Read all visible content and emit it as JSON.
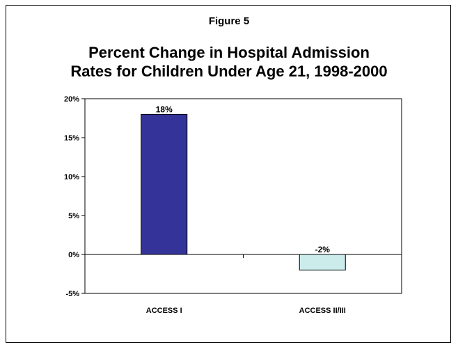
{
  "header": {
    "figure_label": "Figure 5",
    "title_line1": "Percent Change in Hospital Admission",
    "title_line2": "Rates for Children Under Age 21, 1998-2000"
  },
  "chart_data": {
    "type": "bar",
    "title": "Percent Change in Hospital Admission Rates for Children Under Age 21, 1998-2000",
    "categories": [
      "ACCESS I",
      "ACCESS II/III"
    ],
    "values": [
      18,
      -2
    ],
    "data_labels": [
      "18%",
      "-2%"
    ],
    "bar_colors": [
      "#333399",
      "#CCECEC"
    ],
    "ylim": [
      -5,
      20
    ],
    "yticks": [
      20,
      15,
      10,
      5,
      0,
      -5
    ],
    "ytick_labels": [
      "20%",
      "15%",
      "10%",
      "5%",
      "0%",
      "-5%"
    ],
    "xlabel": "",
    "ylabel": "",
    "grid": false,
    "legend": "none"
  }
}
